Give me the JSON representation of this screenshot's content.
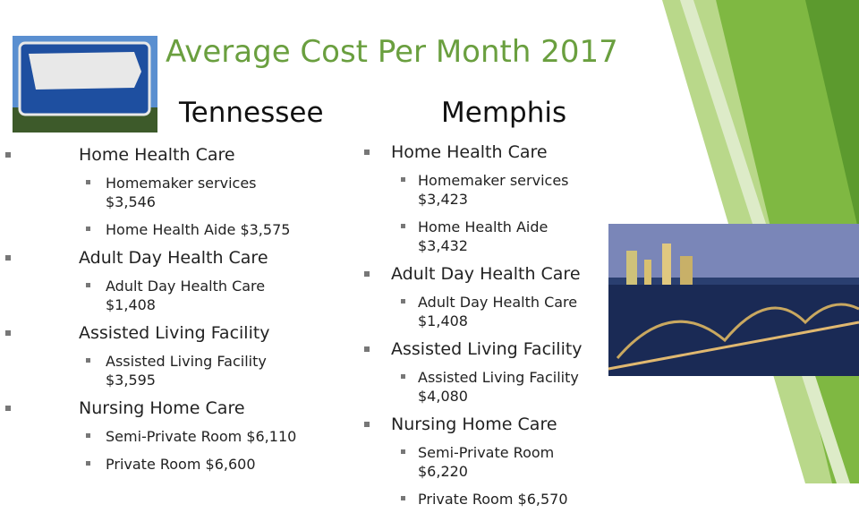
{
  "title": "Average Cost Per Month 2017",
  "columns": [
    {
      "heading": "Tennessee",
      "items": [
        {
          "label": "Home Health Care",
          "subitems": [
            "Homemaker services $3,546",
            "Home Health Aide $3,575"
          ]
        },
        {
          "label": "Adult Day Health Care",
          "subitems": [
            "Adult Day Health Care $1,408"
          ]
        },
        {
          "label": "Assisted Living Facility",
          "subitems": [
            "Assisted Living Facility $3,595"
          ]
        },
        {
          "label": "Nursing Home Care",
          "subitems": [
            "Semi-Private Room $6,110",
            "Private Room $6,600"
          ]
        }
      ]
    },
    {
      "heading": "Memphis",
      "items": [
        {
          "label": "Home Health Care",
          "subitems": [
            "Homemaker services $3,423",
            "Home Health Aide $3,432"
          ]
        },
        {
          "label": "Adult Day Health Care",
          "subitems": [
            "Adult Day Health Care $1,408"
          ]
        },
        {
          "label": "Assisted Living Facility",
          "subitems": [
            "Assisted Living Facility $4,080"
          ]
        },
        {
          "label": "Nursing Home Care",
          "subitems": [
            "Semi-Private Room $6,220",
            "Private Room $6,570"
          ]
        }
      ]
    }
  ]
}
